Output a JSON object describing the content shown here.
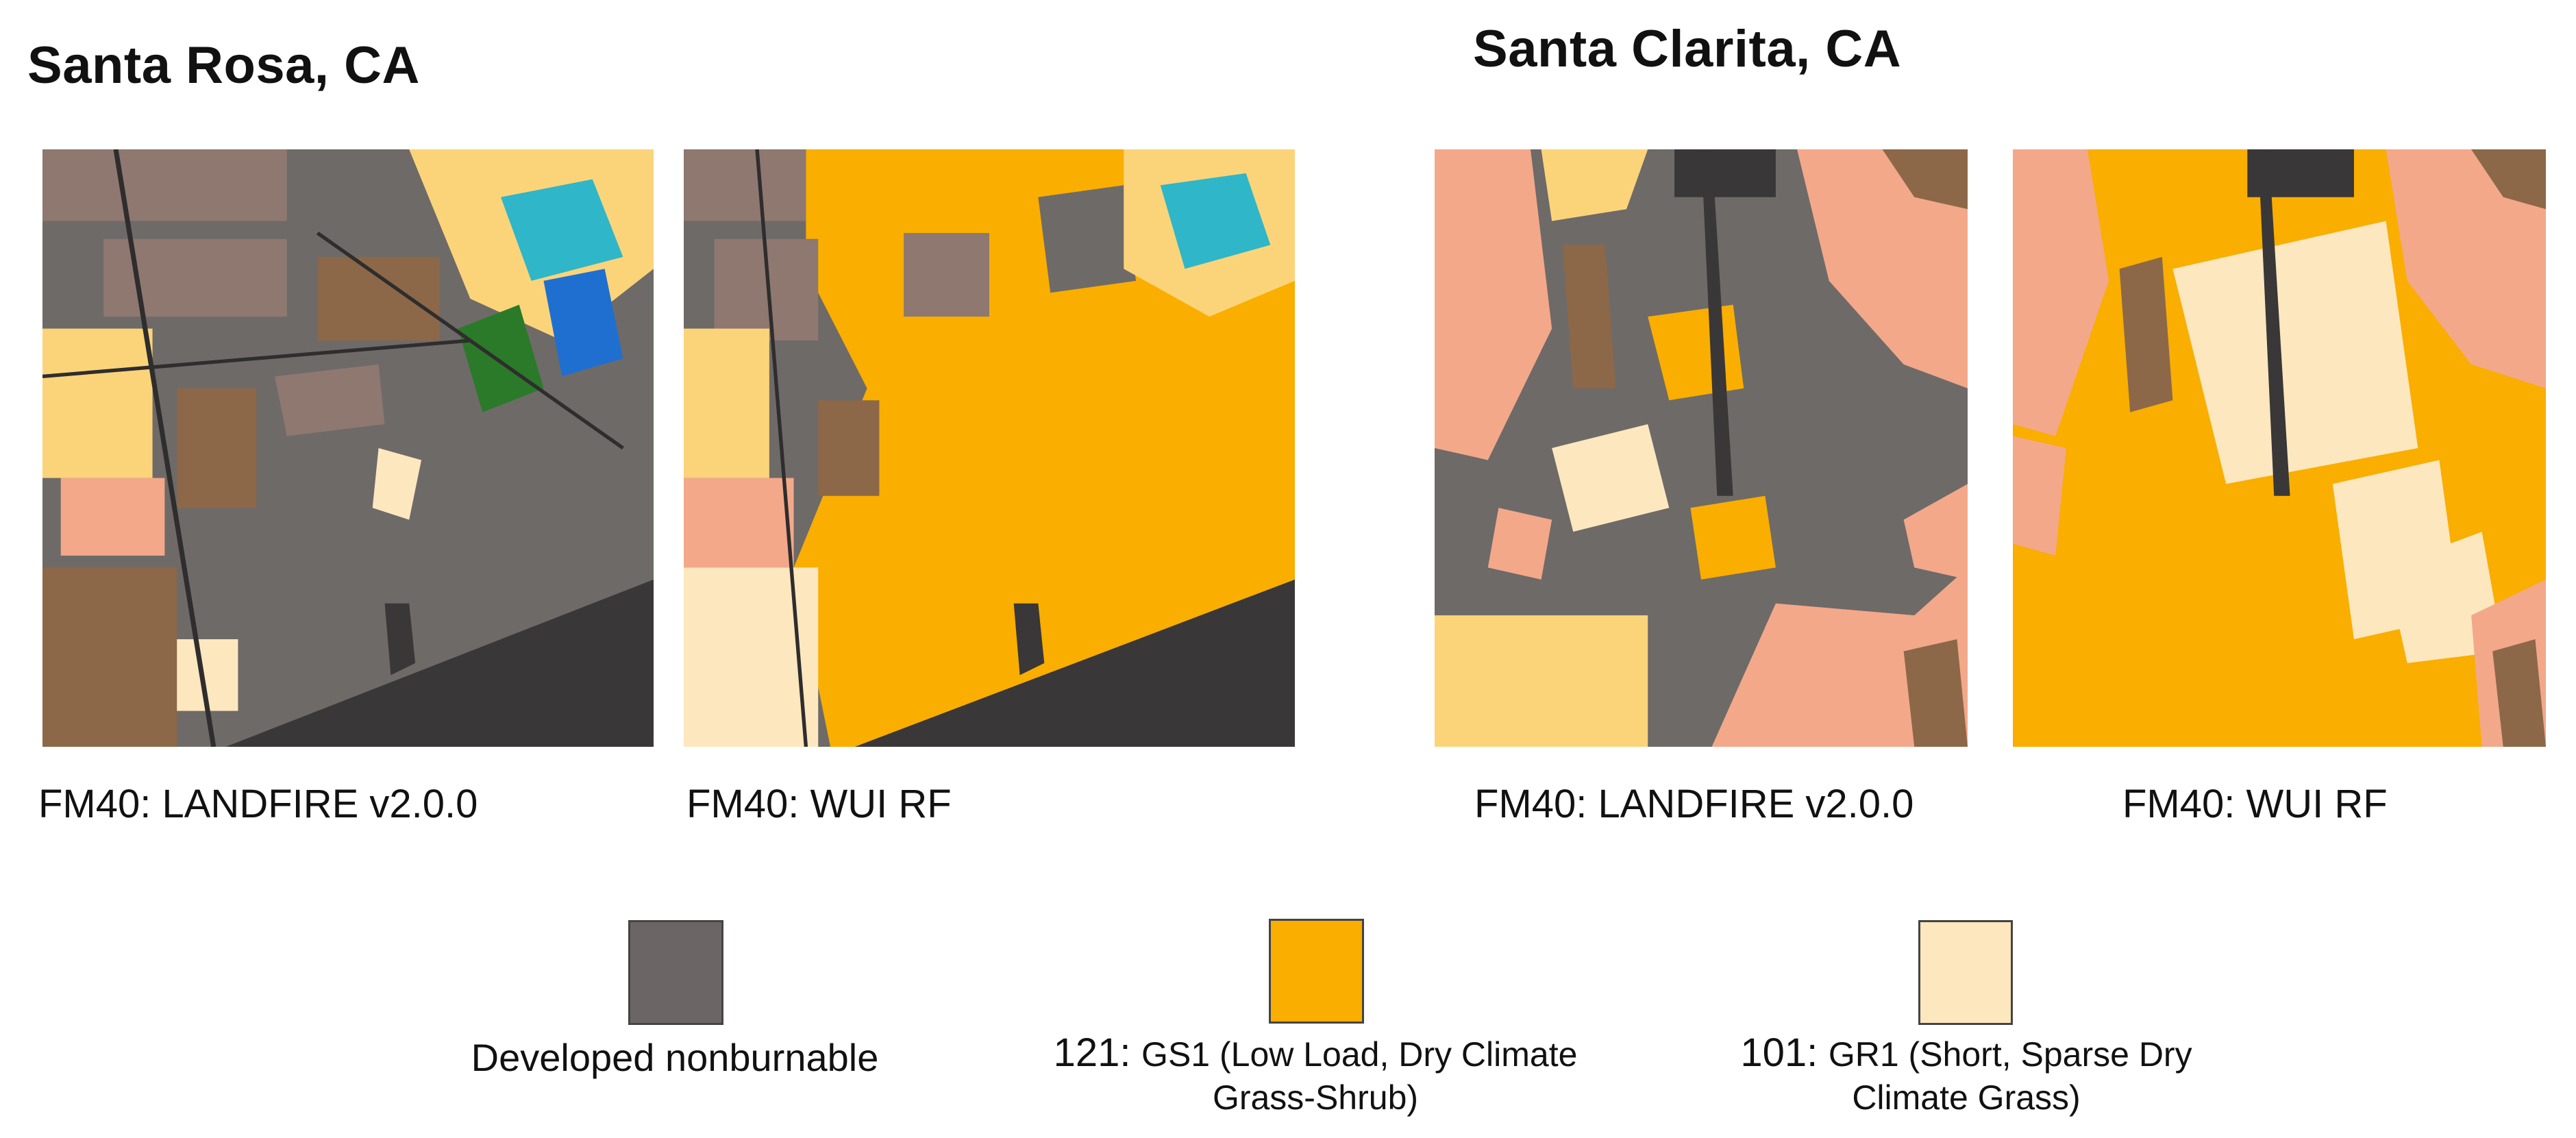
{
  "regions": [
    {
      "title": "Santa Rosa, CA",
      "panels": [
        {
          "caption": "FM40: LANDFIRE v2.0.0",
          "variant": "landfire"
        },
        {
          "caption": "FM40: WUI RF",
          "variant": "wui"
        }
      ]
    },
    {
      "title": "Santa Clarita, CA",
      "panels": [
        {
          "caption": "FM40: LANDFIRE v2.0.0",
          "variant": "landfire"
        },
        {
          "caption": "FM40: WUI RF",
          "variant": "wui"
        }
      ]
    }
  ],
  "legend": [
    {
      "code": "",
      "label": "Developed nonburnable",
      "color": "#6b6665"
    },
    {
      "code": "121:",
      "label": "GS1 (Low Load, Dry Climate Grass-Shrub)",
      "label_line1": "GS1 (Low Load, Dry Climate",
      "label_line2": "Grass-Shrub)",
      "color": "#f9ae00"
    },
    {
      "code": "101:",
      "label": "GR1 (Short, Sparse Dry Climate Grass)",
      "label_line1": "GR1 (Short, Sparse Dry",
      "label_line2": "Climate Grass)",
      "color": "#fde7bf"
    }
  ],
  "palette": {
    "developed": "#6e6a68",
    "dark": "#393737",
    "gs1": "#f9ae00",
    "gr1": "#fde7bf",
    "tan": "#fbd47a",
    "salmon": "#f3a88a",
    "brown": "#8c6848",
    "mauve": "#8e7870",
    "cyan": "#2fb6c9",
    "blue": "#1f6fd1",
    "green": "#2a7a2a",
    "navy": "#141a7a"
  }
}
